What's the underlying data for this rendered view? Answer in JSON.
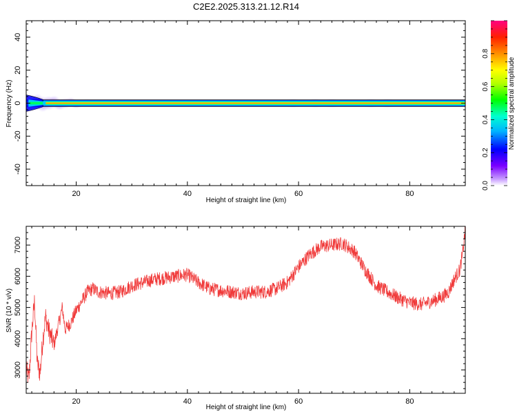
{
  "figure_title": "C2E2.2025.313.21.12.R14",
  "colors": {
    "snr_line": "#f03a3a",
    "band_outline": "#000000",
    "frame": "#000000"
  },
  "chart_data": [
    {
      "type": "heatmap",
      "xlabel": "Height of straight line (km)",
      "ylabel": "Frequency (Hz)",
      "xlim": [
        11,
        90
      ],
      "ylim": [
        -50,
        50
      ],
      "x_ticks": [
        20,
        40,
        60,
        80
      ],
      "y_ticks": [
        -40,
        -20,
        0,
        20,
        40
      ],
      "grid": false,
      "colorbar": {
        "label": "Normalized spectral amplitude",
        "range": [
          0,
          1
        ],
        "ticks": [
          "0.0",
          "0.2",
          "0.4",
          "0.6",
          "0.8"
        ],
        "colormap": "rainbow"
      },
      "features": {
        "main_band": {
          "x_range": [
            11,
            90
          ],
          "center_hz": 0,
          "half_width_hz": 2,
          "peak_amplitude": 1.0
        },
        "low_altitude_spread": {
          "x_range": [
            11,
            24
          ],
          "max_half_width_hz": 6
        }
      }
    },
    {
      "type": "line",
      "xlabel": "Height of straight line (km)",
      "ylabel": "SNR (10 * v/v)",
      "xlim": [
        11,
        90
      ],
      "ylim": [
        2250,
        7600
      ],
      "x_ticks": [
        20,
        40,
        60,
        80
      ],
      "y_ticks": [
        3000,
        4000,
        5000,
        6000,
        7000
      ],
      "grid": false,
      "series": [
        {
          "x": [
            11.0,
            11.5,
            12.0,
            12.5,
            13.0,
            13.5,
            14.0,
            14.5,
            15.0,
            16.0,
            17.0,
            17.5,
            18.0,
            19.0,
            20.0,
            21.0,
            22.0,
            23.0,
            24.0,
            26.0,
            28.0,
            30.0,
            32.0,
            34.0,
            36.0,
            38.0,
            40.0,
            42.0,
            44.0,
            46.0,
            48.0,
            50.0,
            52.0,
            54.0,
            56.0,
            58.0,
            60.0,
            62.0,
            64.0,
            66.0,
            68.0,
            70.0,
            72.0,
            74.0,
            76.0,
            78.0,
            80.0,
            82.0,
            84.0,
            86.0,
            87.0,
            88.0,
            89.0,
            89.5,
            90.0
          ],
          "y": [
            3000,
            2700,
            4200,
            5200,
            3200,
            2900,
            4000,
            4700,
            4300,
            3800,
            4600,
            5000,
            4300,
            4500,
            4900,
            5200,
            5500,
            5600,
            5500,
            5450,
            5500,
            5700,
            5800,
            5900,
            5950,
            6000,
            6050,
            5800,
            5600,
            5550,
            5500,
            5450,
            5500,
            5500,
            5600,
            5800,
            6300,
            6700,
            6950,
            7000,
            7050,
            6800,
            6200,
            5700,
            5500,
            5300,
            5150,
            5100,
            5200,
            5350,
            5500,
            5900,
            6200,
            6700,
            7500
          ],
          "noise_amplitude": 220
        }
      ]
    }
  ]
}
